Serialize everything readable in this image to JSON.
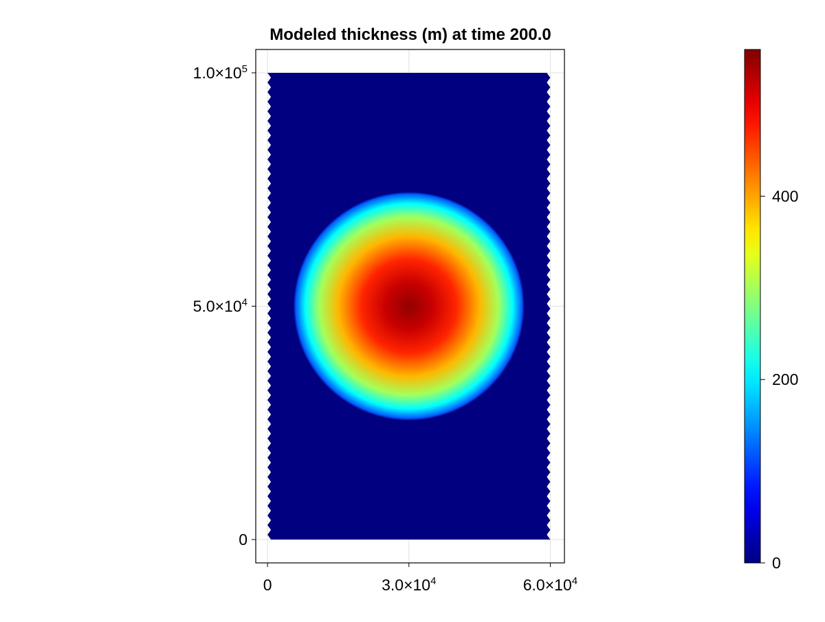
{
  "chart_data": {
    "type": "heatmap",
    "title": "Modeled thickness (m) at time 200.0",
    "xlabel": "",
    "ylabel": "",
    "xlim": [
      -2500,
      63000
    ],
    "ylim": [
      -5000,
      105000
    ],
    "x_ticks": [
      {
        "value": 0,
        "mant": "0",
        "exp": ""
      },
      {
        "value": 30000,
        "mant": "3.0×10",
        "exp": "4"
      },
      {
        "value": 60000,
        "mant": "6.0×10",
        "exp": "4"
      }
    ],
    "y_ticks": [
      {
        "value": 0,
        "mant": "0",
        "exp": ""
      },
      {
        "value": 50000,
        "mant": "5.0×10",
        "exp": "4"
      },
      {
        "value": 100000,
        "mant": "1.0×10",
        "exp": "5"
      }
    ],
    "grid": true,
    "domain": {
      "x": [
        0,
        60000
      ],
      "y": [
        0,
        100000
      ]
    },
    "field": {
      "shape": "radial dome",
      "center": [
        30000,
        50000
      ],
      "radius": 24500,
      "max_value": 550,
      "min_value": 0,
      "profile": [
        {
          "r": 0,
          "value": 550
        },
        {
          "r": 5000,
          "value": 520
        },
        {
          "r": 10000,
          "value": 470
        },
        {
          "r": 15000,
          "value": 390
        },
        {
          "r": 19000,
          "value": 300
        },
        {
          "r": 22000,
          "value": 210
        },
        {
          "r": 24000,
          "value": 120
        },
        {
          "r": 24500,
          "value": 0
        }
      ]
    },
    "colormap": "jet",
    "colorbar": {
      "range": [
        0,
        560
      ],
      "ticks": [
        {
          "value": 0,
          "label": "0"
        },
        {
          "value": 200,
          "label": "200"
        },
        {
          "value": 400,
          "label": "400"
        }
      ]
    }
  }
}
